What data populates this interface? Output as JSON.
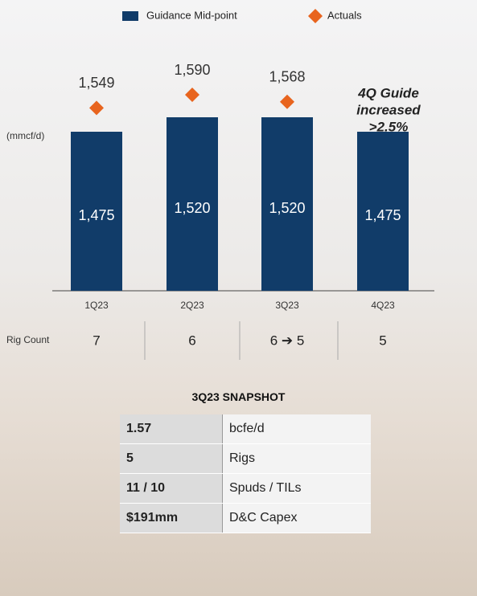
{
  "chart_data": {
    "type": "bar",
    "y_label": "(mmcf/d)",
    "categories": [
      "1Q23",
      "2Q23",
      "3Q23",
      "4Q23"
    ],
    "series": [
      {
        "name": "Guidance Mid-point",
        "color": "#113c69",
        "values": [
          1475,
          1520,
          1520,
          1475
        ],
        "value_labels": [
          "1,475",
          "1,520",
          "1,520",
          "1,475"
        ]
      },
      {
        "name": "Actuals",
        "color": "#e8641e",
        "values": [
          1549,
          1590,
          1568,
          null
        ],
        "value_labels": [
          "1,549",
          "1,590",
          "1,568",
          null
        ]
      }
    ],
    "ylim": [
      980,
      1730
    ],
    "annotation": [
      "4Q Guide",
      "increased",
      ">2.5%"
    ],
    "rig_count": {
      "label": "Rig Count",
      "values": [
        "7",
        "6",
        "6 ➔ 5",
        "5"
      ]
    }
  },
  "table": {
    "title": "3Q23 SNAPSHOT",
    "rows": [
      [
        "1.57",
        "bcfe/d"
      ],
      [
        "5",
        "Rigs"
      ],
      [
        "11 / 10",
        "Spuds / TILs"
      ],
      [
        "$191mm",
        "D&C Capex"
      ]
    ]
  }
}
